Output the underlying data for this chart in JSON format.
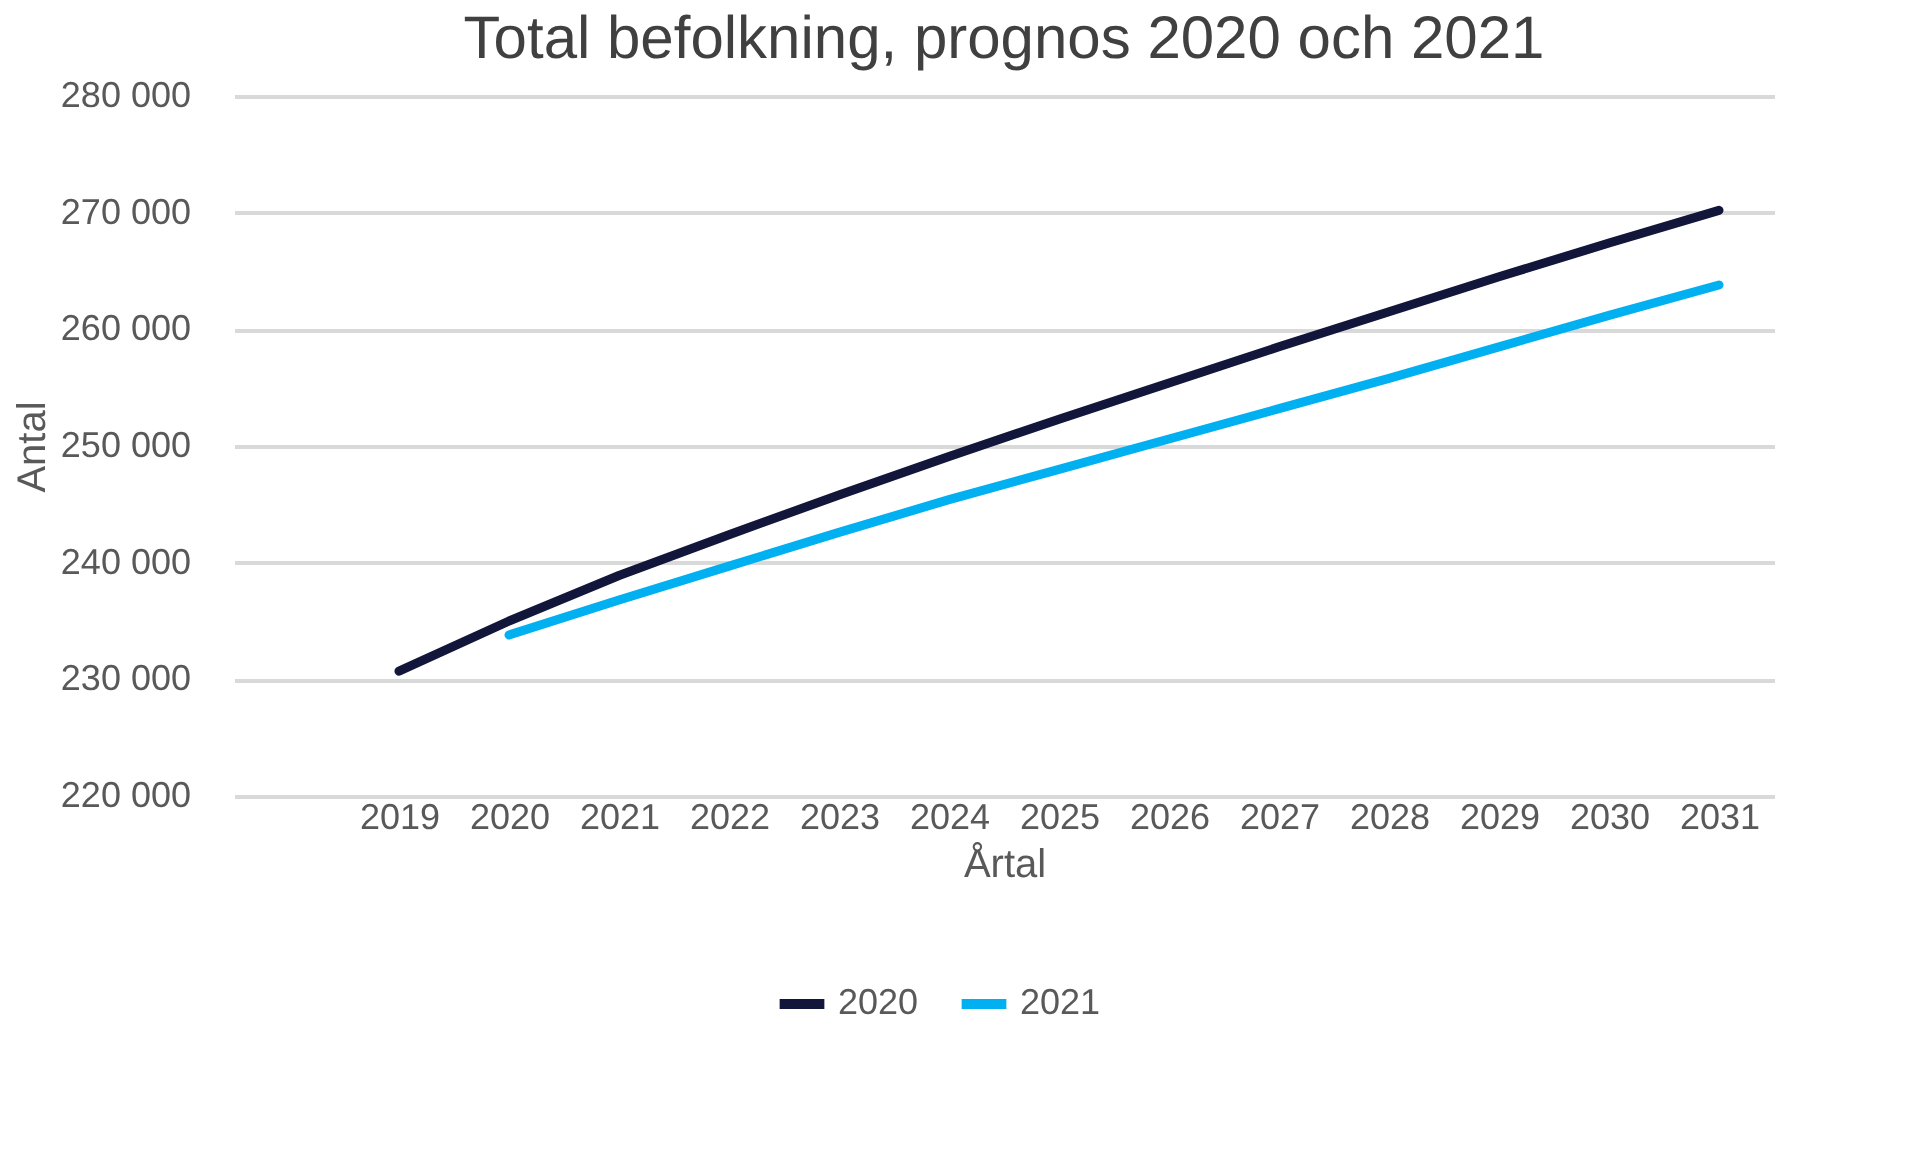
{
  "chart_data": {
    "type": "line",
    "title": "Total befolkning, prognos 2020 och 2021",
    "xlabel": "Årtal",
    "ylabel": "Antal",
    "categories": [
      null,
      "2019",
      "2020",
      "2021",
      "2022",
      "2023",
      "2024",
      "2025",
      "2026",
      "2027",
      "2028",
      "2029",
      "2030",
      "2031"
    ],
    "series": [
      {
        "name": "2020",
        "color": "#12163a",
        "values": [
          null,
          230700,
          235000,
          238900,
          242400,
          245800,
          249100,
          252300,
          255400,
          258500,
          261500,
          264500,
          267400,
          270200
        ]
      },
      {
        "name": "2021",
        "color": "#00b0f0",
        "values": [
          null,
          null,
          233800,
          236800,
          239700,
          242600,
          245400,
          248000,
          250600,
          253200,
          255800,
          258500,
          261200,
          263800
        ]
      }
    ],
    "ylim": [
      220000,
      280000
    ],
    "yticks": [
      {
        "value": 220000,
        "label": "220 000"
      },
      {
        "value": 230000,
        "label": "230 000"
      },
      {
        "value": 240000,
        "label": "240 000"
      },
      {
        "value": 250000,
        "label": "250 000"
      },
      {
        "value": 260000,
        "label": "260 000"
      },
      {
        "value": 270000,
        "label": "270 000"
      },
      {
        "value": 280000,
        "label": "280 000"
      }
    ],
    "grid": "y",
    "legend": "bottom",
    "marker": "none",
    "line_style": "solid"
  }
}
